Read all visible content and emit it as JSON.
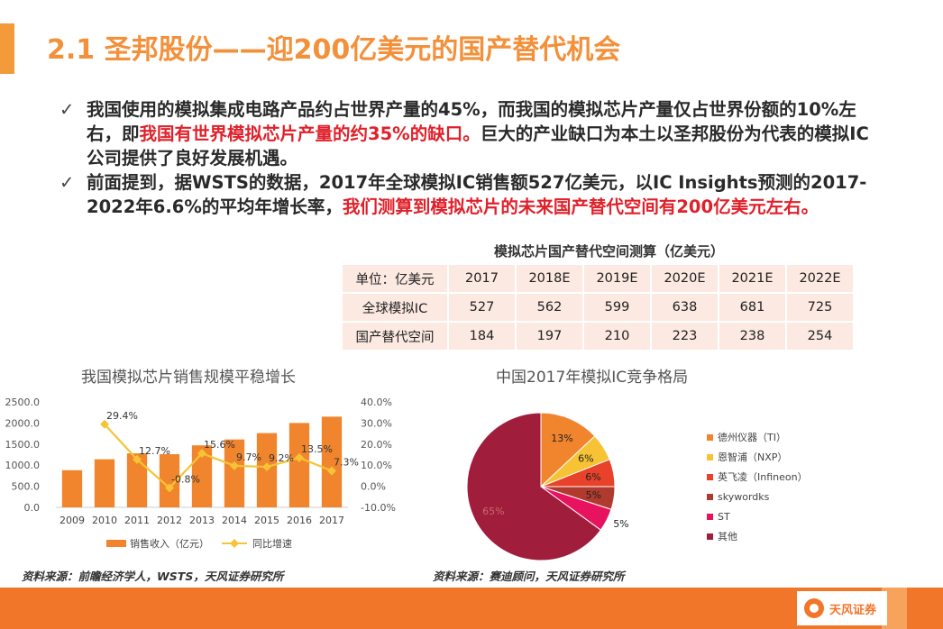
{
  "slide": {
    "title": "2.1 圣邦股份——迎200亿美元的国产替代机会"
  },
  "bullets": [
    {
      "check": "✓",
      "parts": [
        {
          "text": "我国使用的模拟集成电路产品约占世界产量的45%，而我国的模拟芯片产量仅占世界份额的10%左右，即",
          "red": false
        },
        {
          "text": "我国有世界模拟芯片产量的约35%的缺口。",
          "red": true
        },
        {
          "text": "巨大的产业缺口为本土以圣邦股份为代表的模拟IC公司提供了良好发展机遇。",
          "red": false
        }
      ]
    },
    {
      "check": "✓",
      "parts": [
        {
          "text": "前面提到，据WSTS的数据，2017年全球模拟IC销售额527亿美元，以IC Insights预测的2017-2022年6.6%的平均年增长率，",
          "red": false
        },
        {
          "text": "我们测算到模拟芯片的未来国产替代空间有200亿美元左右。",
          "red": true
        }
      ]
    }
  ],
  "forecast_table": {
    "title": "模拟芯片国产替代空间测算（亿美元）",
    "header": [
      "单位：亿美元",
      "2017",
      "2018E",
      "2019E",
      "2020E",
      "2021E",
      "2022E"
    ],
    "rows": [
      [
        "全球模拟IC",
        "527",
        "562",
        "599",
        "638",
        "681",
        "725"
      ],
      [
        "国产替代空间",
        "184",
        "197",
        "210",
        "223",
        "238",
        "254"
      ]
    ]
  },
  "chart_data": [
    {
      "type": "bar",
      "title": "我国模拟芯片销售规模平稳增长",
      "categories": [
        "2009",
        "2010",
        "2011",
        "2012",
        "2013",
        "2014",
        "2015",
        "2016",
        "2017"
      ],
      "y_ticks": [
        "2500.0",
        "2000.0",
        "1500.0",
        "1000.0",
        "500.0",
        "0.0"
      ],
      "y2_ticks": [
        "40.0%",
        "30.0%",
        "20.0%",
        "10.0%",
        "0.0%",
        "-10.0%"
      ],
      "ylim": [
        0,
        2500
      ],
      "y2lim": [
        -10,
        40
      ],
      "series": [
        {
          "name": "销售收入（亿元）",
          "kind": "bar",
          "axis": "left",
          "color": "#f0852d",
          "values": [
            880,
            1140,
            1280,
            1260,
            1470,
            1610,
            1760,
            2000,
            2150
          ]
        },
        {
          "name": "同比增速",
          "kind": "line",
          "axis": "right",
          "color": "#f7c334",
          "values": [
            null,
            29.4,
            12.7,
            -0.8,
            15.6,
            9.7,
            9.2,
            13.5,
            7.3
          ],
          "labels": [
            "",
            "29.4%",
            "12.7%",
            "-0.8%",
            "15.6%",
            "9.7%",
            "9.2%",
            "13.5%",
            "7.3%"
          ]
        }
      ],
      "source": "资料来源：前瞻经济学人，WSTS，天风证券研究所"
    },
    {
      "type": "pie",
      "title": "中国2017年模拟IC竞争格局",
      "slices": [
        {
          "name": "德州仪器（TI）",
          "value": 13,
          "label": "13%",
          "color": "#f0852d"
        },
        {
          "name": "恩智浦（NXP）",
          "value": 6,
          "label": "6%",
          "color": "#f7c334"
        },
        {
          "name": "英飞凌（Infineon）",
          "value": 6,
          "label": "6%",
          "color": "#e8422a"
        },
        {
          "name": "skywordks",
          "value": 5,
          "label": "5%",
          "color": "#b03a2e"
        },
        {
          "name": "ST",
          "value": 5,
          "label": "5%",
          "color": "#e8135f"
        },
        {
          "name": "其他",
          "value": 65,
          "label": "65%",
          "color": "#a01d3c"
        }
      ],
      "source": "资料来源：赛迪顾问，天风证券研究所"
    }
  ],
  "footer": {
    "logo_text": "天风证券"
  }
}
